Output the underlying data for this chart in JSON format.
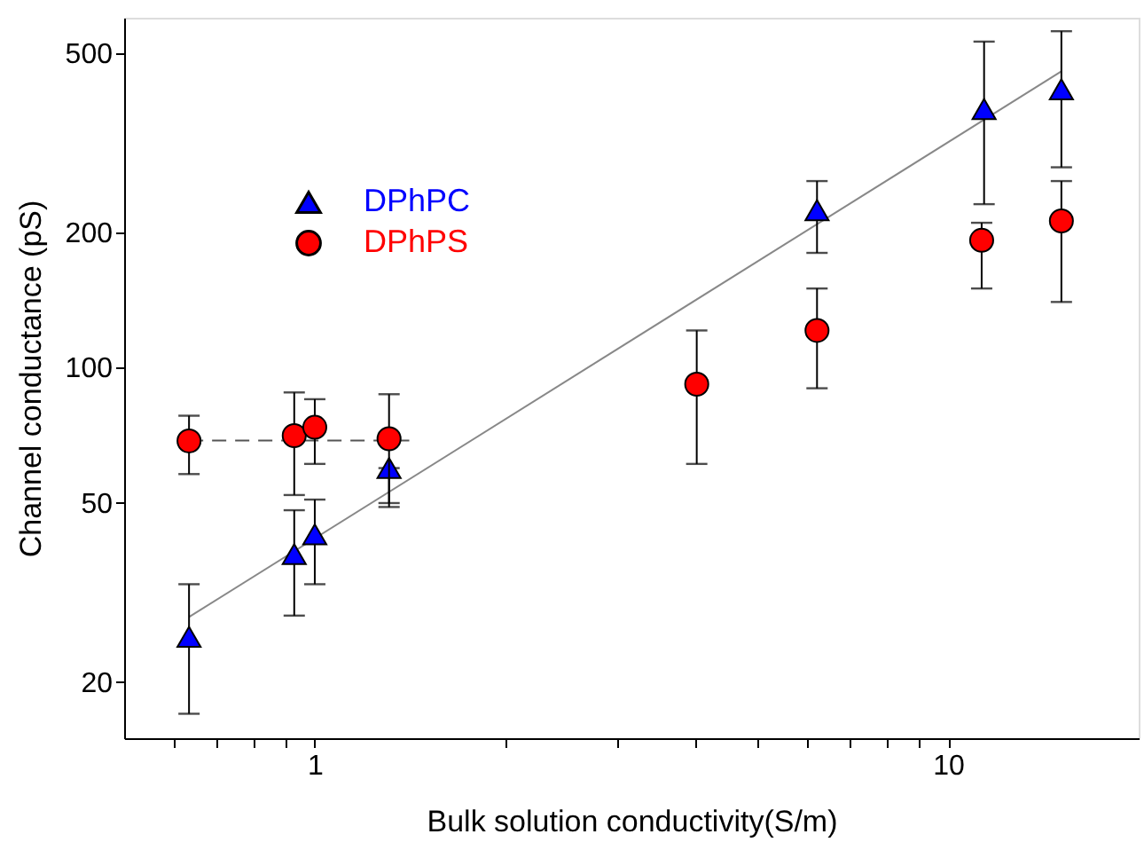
{
  "chart_data": {
    "type": "scatter",
    "xlabel": "Bulk solution conductivity(S/m)",
    "ylabel": "Channel conductance (pS)",
    "log": "xy",
    "grid": false,
    "legend": "top left",
    "xlim": [
      0.5,
      20
    ],
    "ylim": [
      15,
      600
    ],
    "xticks": [
      {
        "value": 0.6,
        "label": null
      },
      {
        "value": 0.7,
        "label": null
      },
      {
        "value": 0.8,
        "label": null
      },
      {
        "value": 0.9,
        "label": null
      },
      1,
      {
        "value": 2,
        "label": null
      },
      {
        "value": 3,
        "label": null
      },
      {
        "value": 4,
        "label": null
      },
      {
        "value": 5,
        "label": null
      },
      {
        "value": 6,
        "label": null
      },
      {
        "value": 7,
        "label": null
      },
      {
        "value": 8,
        "label": null
      },
      {
        "value": 9,
        "label": null
      },
      10
    ],
    "yticks": [
      20,
      50,
      100,
      200,
      500
    ],
    "series": [
      {
        "name": "DPhPC",
        "color": "#0000ff",
        "marker": "triangle",
        "x": [
          0.633,
          0.928,
          1.0,
          1.31,
          6.21,
          11.4,
          15.1
        ],
        "values": [
          25.2,
          38.5,
          42.6,
          59.8,
          224,
          376,
          416
        ],
        "errors": [
          [
            17.0,
            33.0
          ],
          [
            28.1,
            48.2
          ],
          [
            33.0,
            50.9
          ],
          [
            49,
            59.8
          ],
          [
            180,
            260
          ],
          [
            231,
            531
          ],
          [
            279,
            560
          ]
        ]
      },
      {
        "name": "DPhPS",
        "color": "#ff0000",
        "marker": "circle",
        "x": [
          0.633,
          0.928,
          1.0,
          1.31,
          4.01,
          6.21,
          11.3,
          15.1
        ],
        "values": [
          68.7,
          70.6,
          73.7,
          69.5,
          91.9,
          121,
          192,
          212
        ],
        "errors": [
          [
            58.0,
            78.2
          ],
          [
            52.1,
            88.1
          ],
          [
            61.1,
            85.1
          ],
          [
            50.0,
            87.3
          ],
          [
            61.1,
            121
          ],
          [
            90,
            150
          ],
          [
            150,
            210
          ],
          [
            140,
            260
          ]
        ]
      },
      {
        "type": "line",
        "color": "#888888",
        "line_style": "solid",
        "x": [
          0.633,
          15.1
        ],
        "values": [
          27.9,
          456
        ]
      },
      {
        "type": "line",
        "color": "#555555",
        "line_style": "dashed",
        "x": [
          0.633,
          1.41
        ],
        "values": [
          68.9,
          68.9
        ]
      }
    ]
  }
}
